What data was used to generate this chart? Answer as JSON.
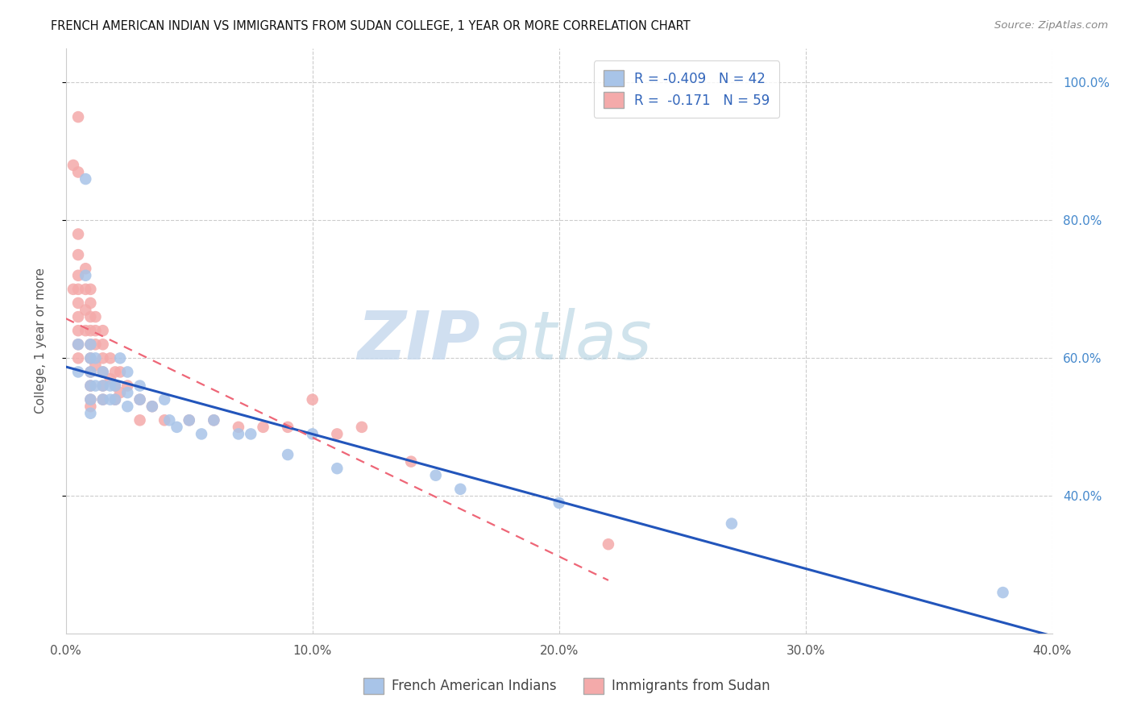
{
  "title": "FRENCH AMERICAN INDIAN VS IMMIGRANTS FROM SUDAN COLLEGE, 1 YEAR OR MORE CORRELATION CHART",
  "source": "Source: ZipAtlas.com",
  "ylabel": "College, 1 year or more",
  "xlim": [
    0.0,
    0.4
  ],
  "ylim": [
    0.2,
    1.05
  ],
  "xtick_labels": [
    "0.0%",
    "10.0%",
    "20.0%",
    "30.0%",
    "40.0%"
  ],
  "xtick_values": [
    0.0,
    0.1,
    0.2,
    0.3,
    0.4
  ],
  "ytick_values": [
    0.4,
    0.6,
    0.8,
    1.0
  ],
  "ytick_labels": [
    "40.0%",
    "60.0%",
    "80.0%",
    "100.0%"
  ],
  "blue_R": -0.409,
  "blue_N": 42,
  "pink_R": -0.171,
  "pink_N": 59,
  "blue_color": "#A8C4E8",
  "pink_color": "#F4AAAA",
  "blue_line_color": "#2255BB",
  "pink_line_color": "#EE6677",
  "grid_color": "#CCCCCC",
  "legend_label_blue": "French American Indians",
  "legend_label_pink": "Immigrants from Sudan",
  "watermark_zip": "ZIP",
  "watermark_atlas": "atlas",
  "blue_x": [
    0.005,
    0.005,
    0.008,
    0.008,
    0.01,
    0.01,
    0.01,
    0.01,
    0.01,
    0.01,
    0.012,
    0.012,
    0.015,
    0.015,
    0.015,
    0.018,
    0.018,
    0.02,
    0.02,
    0.022,
    0.025,
    0.025,
    0.025,
    0.03,
    0.03,
    0.035,
    0.04,
    0.042,
    0.045,
    0.05,
    0.055,
    0.06,
    0.07,
    0.075,
    0.09,
    0.1,
    0.11,
    0.15,
    0.16,
    0.2,
    0.27,
    0.38
  ],
  "blue_y": [
    0.62,
    0.58,
    0.86,
    0.72,
    0.62,
    0.6,
    0.58,
    0.56,
    0.54,
    0.52,
    0.6,
    0.56,
    0.58,
    0.56,
    0.54,
    0.56,
    0.54,
    0.56,
    0.54,
    0.6,
    0.58,
    0.55,
    0.53,
    0.56,
    0.54,
    0.53,
    0.54,
    0.51,
    0.5,
    0.51,
    0.49,
    0.51,
    0.49,
    0.49,
    0.46,
    0.49,
    0.44,
    0.43,
    0.41,
    0.39,
    0.36,
    0.26
  ],
  "pink_x": [
    0.003,
    0.003,
    0.005,
    0.005,
    0.005,
    0.005,
    0.005,
    0.005,
    0.005,
    0.005,
    0.005,
    0.005,
    0.005,
    0.008,
    0.008,
    0.008,
    0.008,
    0.01,
    0.01,
    0.01,
    0.01,
    0.01,
    0.01,
    0.01,
    0.01,
    0.01,
    0.01,
    0.012,
    0.012,
    0.012,
    0.012,
    0.015,
    0.015,
    0.015,
    0.015,
    0.015,
    0.015,
    0.018,
    0.018,
    0.02,
    0.02,
    0.02,
    0.022,
    0.022,
    0.025,
    0.03,
    0.03,
    0.035,
    0.04,
    0.05,
    0.06,
    0.07,
    0.08,
    0.09,
    0.1,
    0.11,
    0.12,
    0.14,
    0.22
  ],
  "pink_y": [
    0.88,
    0.7,
    0.95,
    0.87,
    0.78,
    0.75,
    0.72,
    0.7,
    0.68,
    0.66,
    0.64,
    0.62,
    0.6,
    0.73,
    0.7,
    0.67,
    0.64,
    0.7,
    0.68,
    0.66,
    0.64,
    0.62,
    0.6,
    0.58,
    0.56,
    0.54,
    0.53,
    0.66,
    0.64,
    0.62,
    0.59,
    0.64,
    0.62,
    0.6,
    0.58,
    0.56,
    0.54,
    0.6,
    0.57,
    0.58,
    0.56,
    0.54,
    0.58,
    0.55,
    0.56,
    0.54,
    0.51,
    0.53,
    0.51,
    0.51,
    0.51,
    0.5,
    0.5,
    0.5,
    0.54,
    0.49,
    0.5,
    0.45,
    0.33
  ]
}
